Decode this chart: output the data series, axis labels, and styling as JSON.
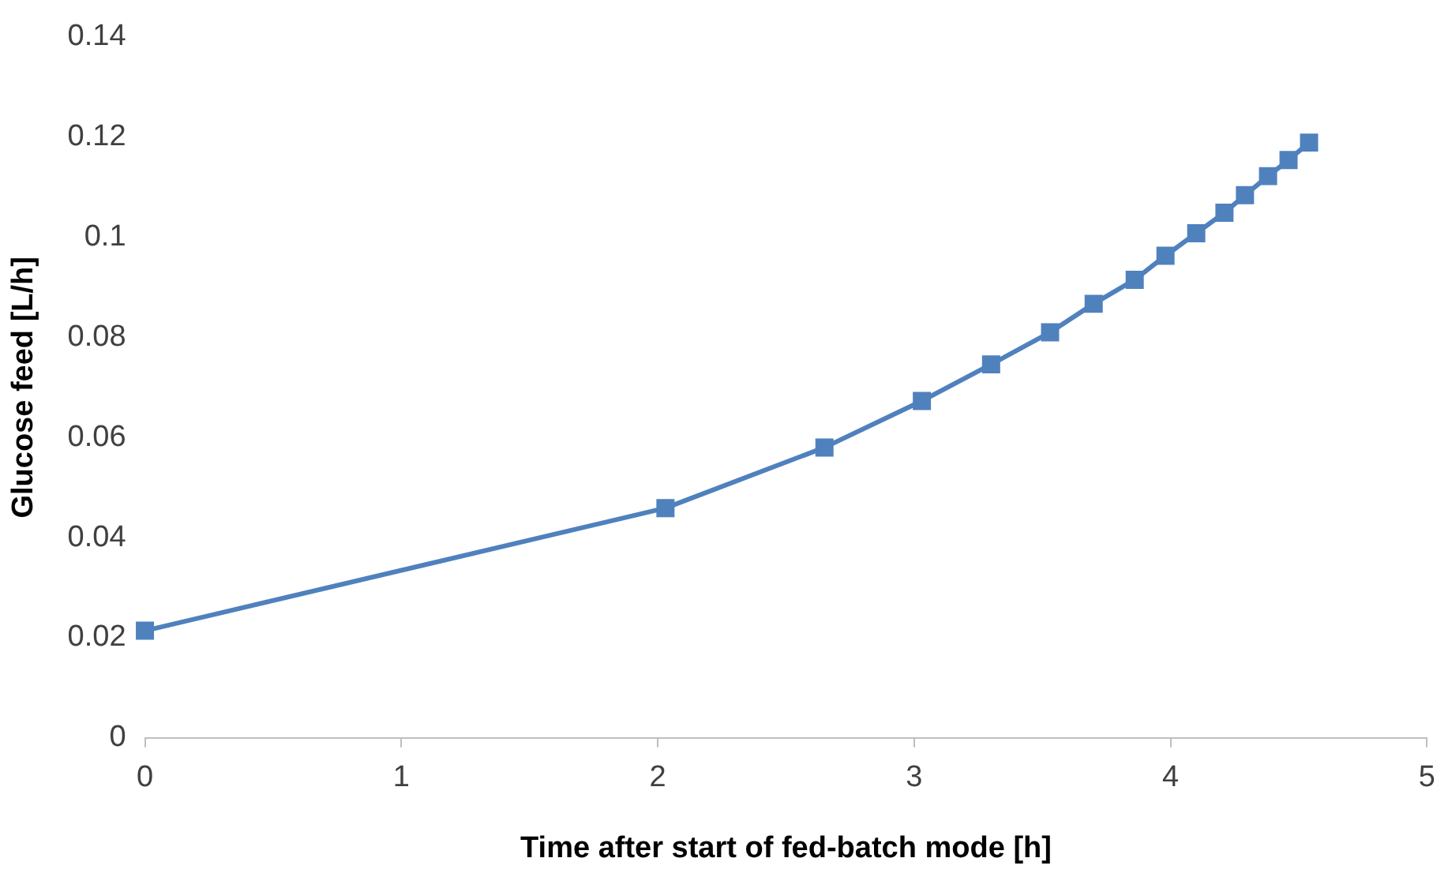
{
  "chart_data": {
    "type": "line",
    "xlabel": "Time after start of fed-batch mode [h]",
    "ylabel": "Glucose feed [L/h]",
    "x": [
      0,
      2.03,
      2.65,
      3.03,
      3.3,
      3.53,
      3.7,
      3.86,
      3.98,
      4.1,
      4.21,
      4.29,
      4.38,
      4.46,
      4.54
    ],
    "series": [
      {
        "color": "#4f81bd",
        "values": [
          0.0214,
          0.0459,
          0.058,
          0.0673,
          0.0746,
          0.081,
          0.0867,
          0.0915,
          0.0963,
          0.1008,
          0.1049,
          0.1084,
          0.1122,
          0.1154,
          0.1189
        ]
      }
    ],
    "xlim": [
      0,
      5
    ],
    "xticks": [
      0,
      1,
      2,
      3,
      4,
      5
    ],
    "ylim": [
      0,
      0.14
    ],
    "yticks": [
      0,
      0.02,
      0.04,
      0.06,
      0.08,
      0.1,
      0.12,
      0.14
    ],
    "grid": false,
    "legend": false,
    "marker": "square",
    "line_style": "solid"
  }
}
